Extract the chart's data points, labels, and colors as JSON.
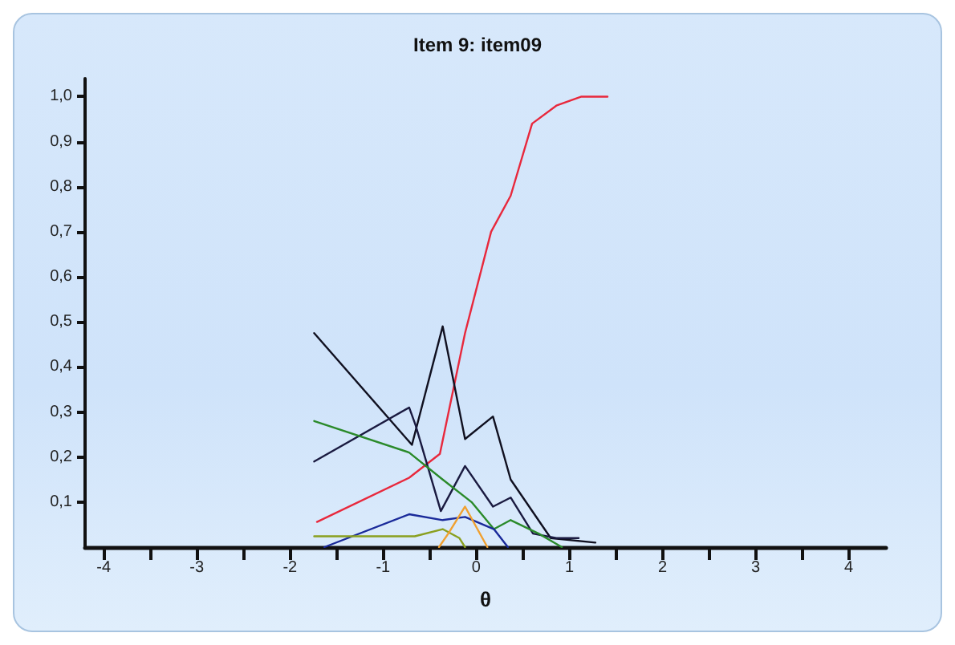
{
  "chart_data": {
    "type": "line",
    "title": "Item 9: item09",
    "xlabel": "θ",
    "xlim": [
      -4.2,
      4.4
    ],
    "ylim": [
      0,
      1.04
    ],
    "xticks": [
      {
        "value": -4,
        "label": "-4"
      },
      {
        "value": -3.5,
        "label": null
      },
      {
        "value": -3,
        "label": "-3"
      },
      {
        "value": -2.5,
        "label": null
      },
      {
        "value": -2,
        "label": "-2"
      },
      {
        "value": -1.5,
        "label": null
      },
      {
        "value": -1,
        "label": "-1"
      },
      {
        "value": -0.5,
        "label": null
      },
      {
        "value": 0,
        "label": "0"
      },
      {
        "value": 0.5,
        "label": null
      },
      {
        "value": 1,
        "label": "1"
      },
      {
        "value": 1.5,
        "label": null
      },
      {
        "value": 2,
        "label": "2"
      },
      {
        "value": 2.5,
        "label": null
      },
      {
        "value": 3,
        "label": "3"
      },
      {
        "value": 3.5,
        "label": null
      },
      {
        "value": 4,
        "label": "4"
      }
    ],
    "yticks": [
      {
        "value": 0.1,
        "label": "0,1"
      },
      {
        "value": 0.2,
        "label": "0,2"
      },
      {
        "value": 0.3,
        "label": "0,3"
      },
      {
        "value": 0.4,
        "label": "0,4"
      },
      {
        "value": 0.5,
        "label": "0,5"
      },
      {
        "value": 0.6,
        "label": "0,6"
      },
      {
        "value": 0.7,
        "label": "0,7"
      },
      {
        "value": 0.8,
        "label": "0,8"
      },
      {
        "value": 0.9,
        "label": "0,9"
      },
      {
        "value": 1.0,
        "label": "1,0"
      }
    ],
    "grid": false,
    "marker": "none",
    "line_style": "solid",
    "series": [
      {
        "color": "#e8283c",
        "x": [
          -1.71,
          -0.72,
          -0.39,
          -0.12,
          0.16,
          0.37,
          0.6,
          0.86,
          1.13,
          1.41
        ],
        "values": [
          0.056,
          0.154,
          0.207,
          0.475,
          0.7,
          0.78,
          0.94,
          0.98,
          1.0,
          1.0
        ]
      },
      {
        "color": "#101020",
        "x": [
          -1.74,
          -0.69,
          -0.36,
          -0.12,
          0.18,
          0.37,
          0.8,
          1.28
        ],
        "values": [
          0.475,
          0.227,
          0.49,
          0.24,
          0.29,
          0.15,
          0.02,
          0.01
        ]
      },
      {
        "color": "#1a1a40",
        "x": [
          -1.74,
          -0.72,
          -0.65,
          -0.38,
          -0.12,
          0.18,
          0.37,
          0.61,
          0.86,
          1.1
        ],
        "values": [
          0.19,
          0.31,
          0.27,
          0.08,
          0.18,
          0.09,
          0.11,
          0.03,
          0.02,
          0.02
        ]
      },
      {
        "color": "#2a8a2a",
        "x": [
          -1.74,
          -0.72,
          -0.36,
          -0.05,
          0.19,
          0.37,
          0.67,
          0.92
        ],
        "values": [
          0.28,
          0.21,
          0.15,
          0.1,
          0.04,
          0.06,
          0.03,
          0.0
        ]
      },
      {
        "color": "#1a2a9a",
        "x": [
          -1.63,
          -0.72,
          -0.36,
          -0.12,
          0.19,
          0.34
        ],
        "values": [
          0.0,
          0.073,
          0.06,
          0.067,
          0.04,
          0.0
        ]
      },
      {
        "color": "#8aa020",
        "x": [
          -1.74,
          -0.66,
          -0.36,
          -0.18,
          -0.12
        ],
        "values": [
          0.024,
          0.024,
          0.04,
          0.02,
          0.0
        ]
      },
      {
        "color": "#f0a030",
        "x": [
          -0.4,
          -0.3,
          -0.12,
          0.12
        ],
        "values": [
          0.0,
          0.03,
          0.09,
          0.0
        ]
      }
    ]
  }
}
